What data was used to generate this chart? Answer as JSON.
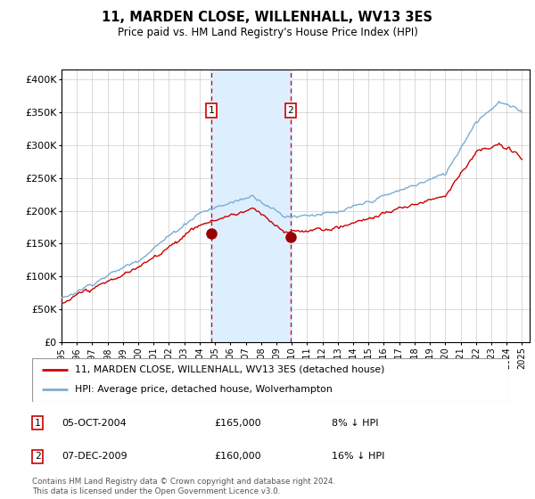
{
  "title": "11, MARDEN CLOSE, WILLENHALL, WV13 3ES",
  "subtitle": "Price paid vs. HM Land Registry's House Price Index (HPI)",
  "ylabel_ticks": [
    "£0",
    "£50K",
    "£100K",
    "£150K",
    "£200K",
    "£250K",
    "£300K",
    "£350K",
    "£400K"
  ],
  "ylim": [
    0,
    415000
  ],
  "xlim_start": 1995.0,
  "xlim_end": 2025.5,
  "hpi_color": "#7aadd4",
  "price_color": "#cc0000",
  "shading_color": "#ddeeff",
  "t1_x": 2004.76,
  "t1_price": 165000,
  "t2_x": 2009.92,
  "t2_price": 160000,
  "legend_line1": "11, MARDEN CLOSE, WILLENHALL, WV13 3ES (detached house)",
  "legend_line2": "HPI: Average price, detached house, Wolverhampton",
  "footnote": "Contains HM Land Registry data © Crown copyright and database right 2024.\nThis data is licensed under the Open Government Licence v3.0."
}
